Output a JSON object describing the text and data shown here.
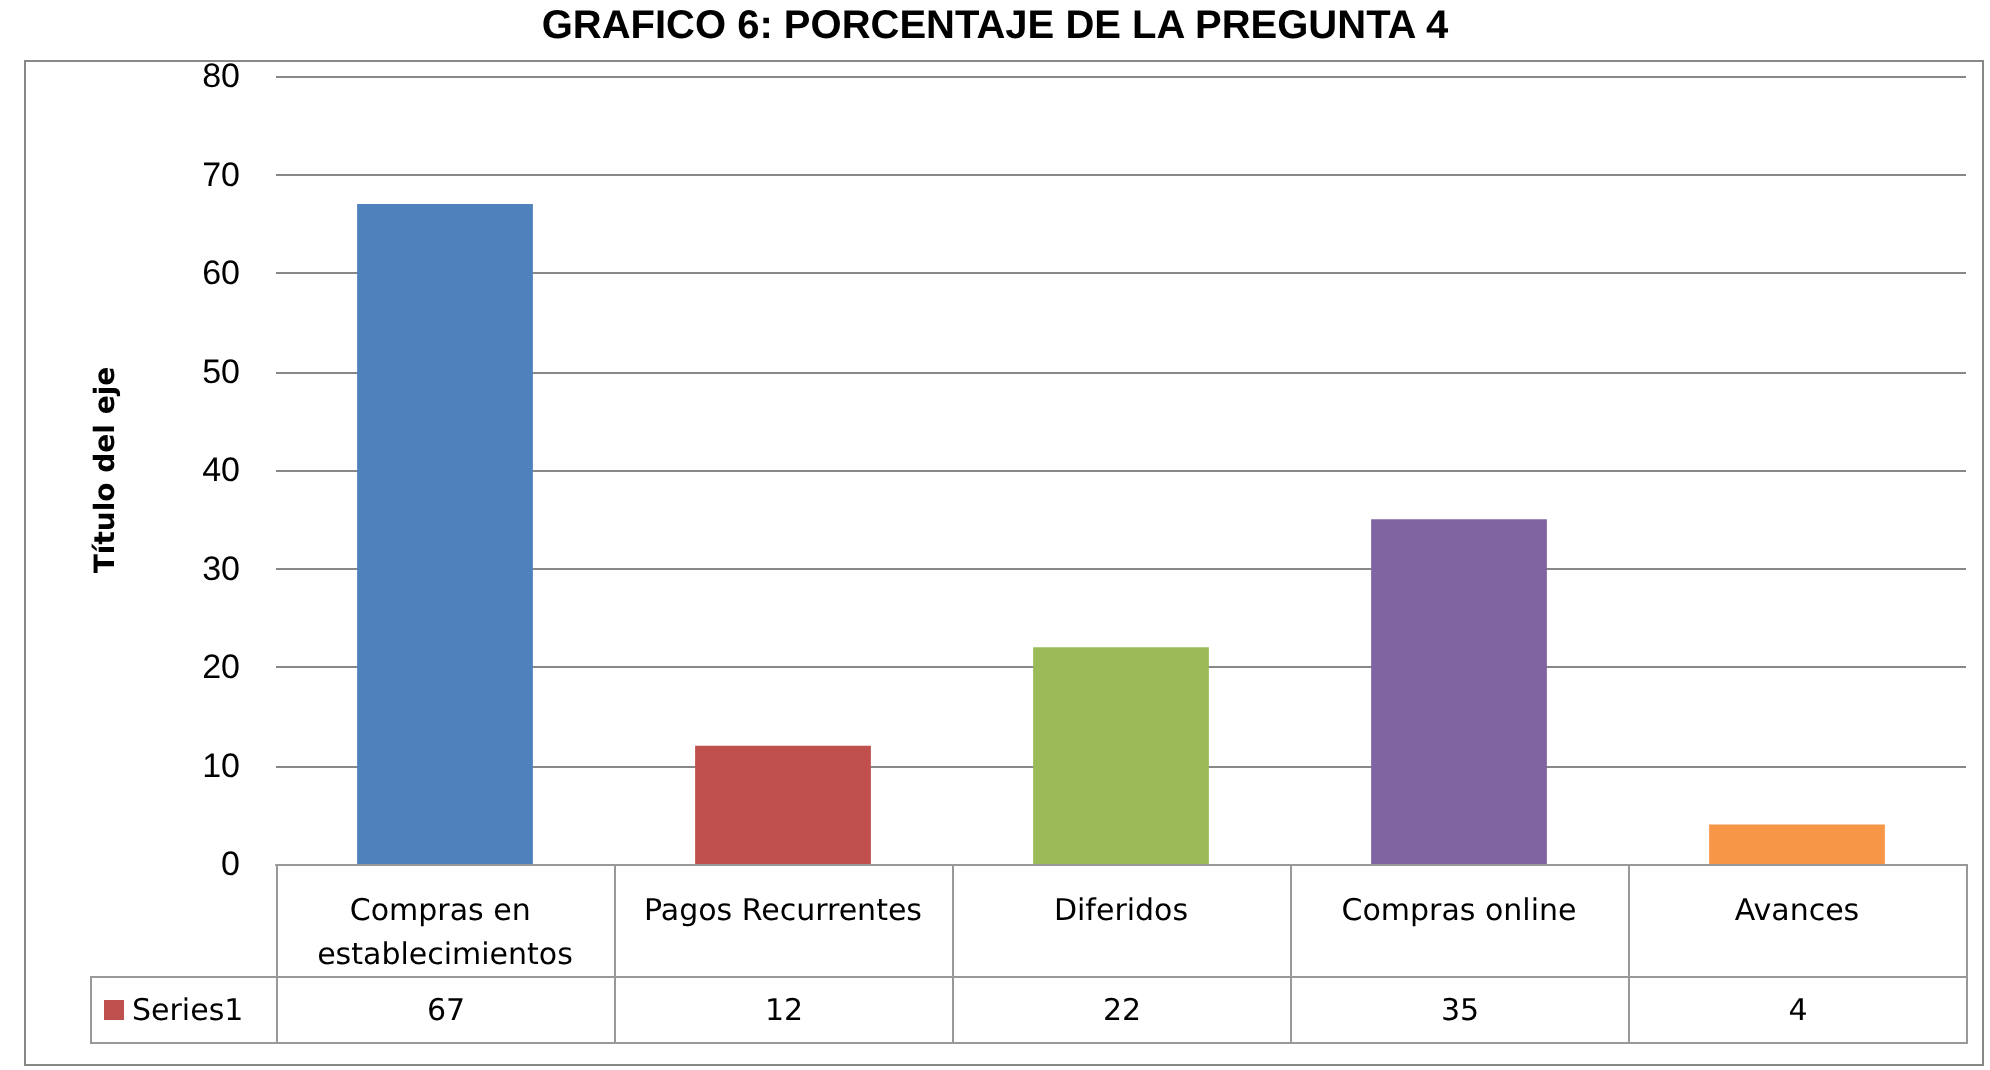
{
  "chart_data": {
    "type": "bar",
    "title": "GRAFICO 6: PORCENTAJE DE LA PREGUNTA 4",
    "ylabel": "Título del eje",
    "categories": [
      "Compras en establecimientos",
      "Pagos Recurrentes",
      "Diferidos",
      "Compras online",
      "Avances"
    ],
    "series": [
      {
        "name": "Series1",
        "color": "#c0504d",
        "colors": [
          "#4f81bd",
          "#c0504d",
          "#9bbb59",
          "#8064a2",
          "#f79646"
        ],
        "values": [
          67,
          12,
          22,
          35,
          4
        ]
      }
    ],
    "ylim": [
      0,
      80
    ],
    "yticks": [
      0,
      10,
      20,
      30,
      40,
      50,
      60,
      70,
      80
    ],
    "grid": "y",
    "legend": "bottom",
    "data_labels": true
  }
}
